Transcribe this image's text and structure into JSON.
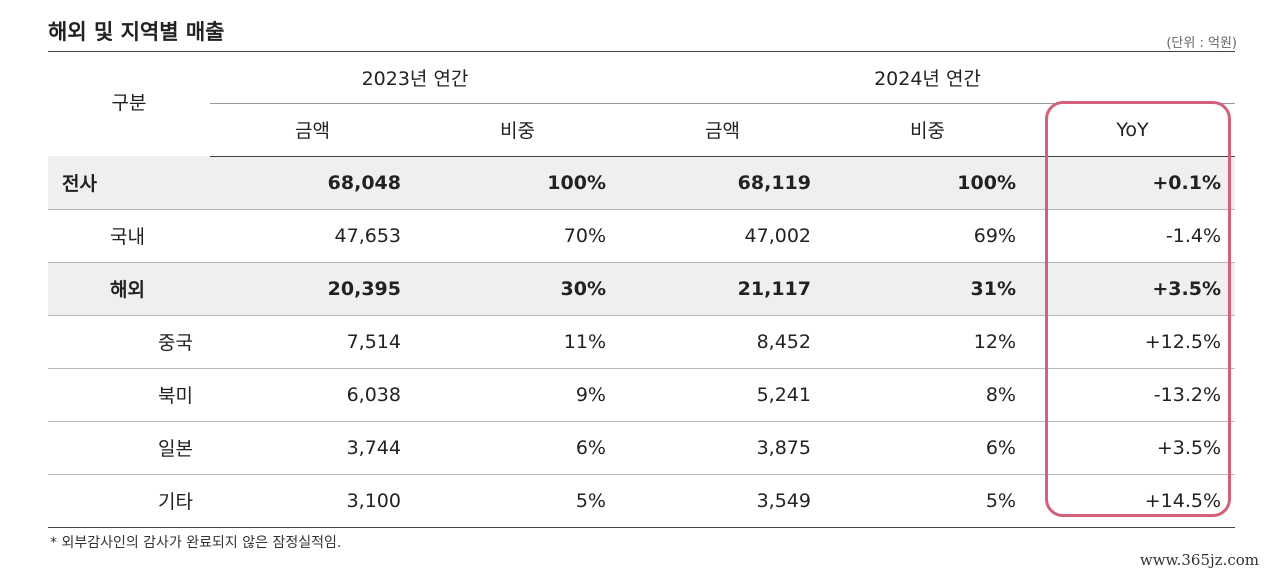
{
  "title": "해외 및 지역별 매출",
  "unit": "(단위 : 억원)",
  "table": {
    "header": {
      "category": "구분",
      "year_2023": "2023년 연간",
      "year_2024": "2024년 연간",
      "amount": "금액",
      "share": "비중",
      "yoy": "YoY"
    },
    "rows": [
      {
        "label": "전사",
        "amount_2023": "68,048",
        "share_2023": "100%",
        "amount_2024": "68,119",
        "share_2024": "100%",
        "yoy": "+0.1%"
      },
      {
        "label": "국내",
        "amount_2023": "47,653",
        "share_2023": "70%",
        "amount_2024": "47,002",
        "share_2024": "69%",
        "yoy": "-1.4%"
      },
      {
        "label": "해외",
        "amount_2023": "20,395",
        "share_2023": "30%",
        "amount_2024": "21,117",
        "share_2024": "31%",
        "yoy": "+3.5%"
      },
      {
        "label": "중국",
        "amount_2023": "7,514",
        "share_2023": "11%",
        "amount_2024": "8,452",
        "share_2024": "12%",
        "yoy": "+12.5%"
      },
      {
        "label": "북미",
        "amount_2023": "6,038",
        "share_2023": "9%",
        "amount_2024": "5,241",
        "share_2024": "8%",
        "yoy": "-13.2%"
      },
      {
        "label": "일본",
        "amount_2023": "3,744",
        "share_2023": "6%",
        "amount_2024": "3,875",
        "share_2024": "6%",
        "yoy": "+3.5%"
      },
      {
        "label": "기타",
        "amount_2023": "3,100",
        "share_2023": "5%",
        "amount_2024": "3,549",
        "share_2024": "5%",
        "yoy": "+14.5%"
      }
    ]
  },
  "footnote": "* 외부감사인의 감사가 완료되지 않은 잠정실적임.",
  "watermark": "www.365jz.com",
  "highlight_color": "#d4607a",
  "shaded_row_color": "#efefef"
}
